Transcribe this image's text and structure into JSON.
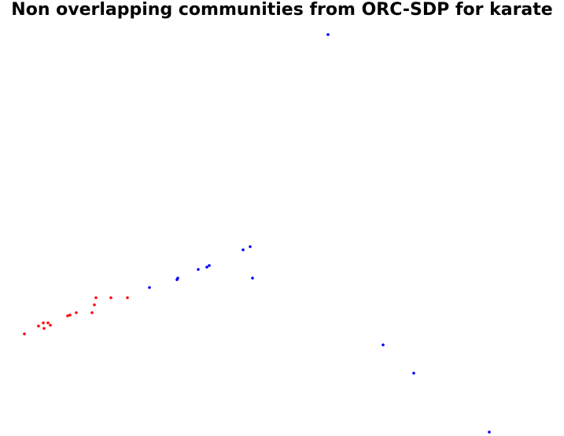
{
  "chart_data": {
    "type": "scatter",
    "title": "Non overlapping communities from ORC-SDP for karate",
    "xlabel": "",
    "ylabel": "",
    "axes_visible": false,
    "grid": false,
    "colors": {
      "community_red": "#ff0000",
      "community_blue": "#0000ff"
    },
    "series": [
      {
        "color": "#ff0000",
        "points": [
          [
            31,
            425
          ],
          [
            49,
            415
          ],
          [
            55,
            411
          ],
          [
            56,
            418
          ],
          [
            61,
            411
          ],
          [
            64,
            414
          ],
          [
            86,
            402
          ],
          [
            89,
            401
          ],
          [
            97,
            398
          ],
          [
            117,
            398
          ],
          [
            120,
            388
          ],
          [
            122,
            379
          ],
          [
            141,
            379
          ],
          [
            162,
            379
          ]
        ]
      },
      {
        "color": "#0000ff",
        "points": [
          [
            190,
            366
          ],
          [
            225,
            356
          ],
          [
            226,
            354
          ],
          [
            252,
            343
          ],
          [
            263,
            340
          ],
          [
            266,
            338
          ],
          [
            309,
            318
          ],
          [
            318,
            314
          ],
          [
            321,
            354
          ],
          [
            417,
            44
          ],
          [
            487,
            439
          ],
          [
            526,
            475
          ],
          [
            622,
            550
          ]
        ]
      }
    ]
  }
}
